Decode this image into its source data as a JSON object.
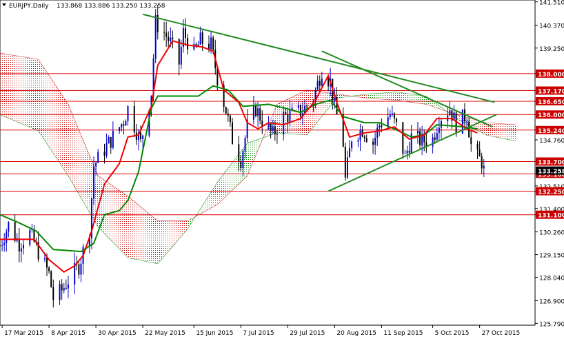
{
  "header": {
    "symbol": "EURJPY,Daily",
    "ohlc": "133.868 133.886 133.250 133.258"
  },
  "chart_data": {
    "type": "candlestick",
    "symbol": "EURJPY",
    "timeframe": "Daily",
    "last_ohlc": {
      "open": 133.868,
      "high": 133.886,
      "low": 133.25,
      "close": 133.258
    },
    "ylim": [
      125.7,
      141.6
    ],
    "y_ticks": [
      "141.510",
      "140.370",
      "139.250",
      "138.000",
      "137.170",
      "136.650",
      "136.000",
      "135.240",
      "134.760",
      "133.700",
      "133.100",
      "132.510",
      "132.250",
      "131.400",
      "131.100",
      "130.260",
      "129.150",
      "128.040",
      "126.900",
      "125.790"
    ],
    "x_ticks": [
      "17 Mar 2015",
      "8 Apr 2015",
      "30 Apr 2015",
      "22 May 2015",
      "15 Jun 2015",
      "7 Jul 2015",
      "29 Jul 2015",
      "20 Aug 2015",
      "11 Sep 2015",
      "5 Oct 2015",
      "27 Oct 2015"
    ],
    "horizontal_levels": [
      138.0,
      137.17,
      136.65,
      136.0,
      135.24,
      133.7,
      133.1,
      132.25,
      131.1
    ],
    "highlighted_levels": [
      "138.000",
      "137.170",
      "136.650",
      "136.000",
      "135.240",
      "133.700",
      "133.100",
      "132.250",
      "131.100"
    ],
    "current_price": "133.258",
    "trendlines": [
      {
        "from": [
          "22 May 2015",
          140.9
        ],
        "to": [
          "3 Nov 2015",
          136.6
        ]
      },
      {
        "from": [
          "14 Aug 2015",
          139.1
        ],
        "to": [
          "2 Nov 2015",
          135.4
        ]
      },
      {
        "from": [
          "17 Aug 2015",
          132.25
        ],
        "to": [
          "4 Nov 2015",
          136.0
        ]
      }
    ],
    "colors": {
      "tenkan": "#ee0000",
      "kijun": "#008800",
      "trendline": "#228B22",
      "level_line": "#dd0000",
      "cloud_bearish": "#cc0000",
      "cloud_bullish": "#008800",
      "bull_candle": "#0000cc",
      "bear_candle": "#000000",
      "level_tag": "#cc0000"
    },
    "series_path": [
      [
        "16 Mar 2015",
        129.6
      ],
      [
        "20 Mar 2015",
        130.6
      ],
      [
        "25 Mar 2015",
        129.7
      ],
      [
        "30 Mar 2015",
        130.2
      ],
      [
        "3 Apr 2015",
        129.3
      ],
      [
        "8 Apr 2015",
        128.2
      ],
      [
        "10 Apr 2015",
        127.0
      ],
      [
        "14 Apr 2015",
        127.4
      ],
      [
        "17 Apr 2015",
        127.9
      ],
      [
        "22 Apr 2015",
        128.6
      ],
      [
        "27 Apr 2015",
        130.4
      ],
      [
        "29 Apr 2015",
        133.5
      ],
      [
        "4 May 2015",
        134.3
      ],
      [
        "8 May 2015",
        134.9
      ],
      [
        "13 May 2015",
        135.7
      ],
      [
        "15 May 2015",
        136.3
      ],
      [
        "19 May 2015",
        135.2
      ],
      [
        "21 May 2015",
        134.6
      ],
      [
        "26 May 2015",
        137.1
      ],
      [
        "28 May 2015",
        140.5
      ],
      [
        "1 Jun 2015",
        140.0
      ],
      [
        "4 Jun 2015",
        139.5
      ],
      [
        "8 Jun 2015",
        138.5
      ],
      [
        "10 Jun 2015",
        140.0
      ],
      [
        "15 Jun 2015",
        139.0
      ],
      [
        "18 Jun 2015",
        139.6
      ],
      [
        "23 Jun 2015",
        139.4
      ],
      [
        "26 Jun 2015",
        137.8
      ],
      [
        "30 Jun 2015",
        136.2
      ],
      [
        "3 Jul 2015",
        134.8
      ],
      [
        "7 Jul 2015",
        133.8
      ],
      [
        "10 Jul 2015",
        135.4
      ],
      [
        "14 Jul 2015",
        136.3
      ],
      [
        "17 Jul 2015",
        135.7
      ],
      [
        "22 Jul 2015",
        135.0
      ],
      [
        "27 Jul 2015",
        135.9
      ],
      [
        "31 Jul 2015",
        136.0
      ],
      [
        "5 Aug 2015",
        136.2
      ],
      [
        "10 Aug 2015",
        136.8
      ],
      [
        "14 Aug 2015",
        138.2
      ],
      [
        "18 Aug 2015",
        137.6
      ],
      [
        "20 Aug 2015",
        136.4
      ],
      [
        "24 Aug 2015",
        134.6
      ],
      [
        "25 Aug 2015",
        132.8
      ],
      [
        "28 Aug 2015",
        134.9
      ],
      [
        "2 Sep 2015",
        135.3
      ],
      [
        "7 Sep 2015",
        134.6
      ],
      [
        "10 Sep 2015",
        135.5
      ],
      [
        "15 Sep 2015",
        136.0
      ],
      [
        "18 Sep 2015",
        135.4
      ],
      [
        "22 Sep 2015",
        133.9
      ],
      [
        "25 Sep 2015",
        134.9
      ],
      [
        "30 Sep 2015",
        134.7
      ],
      [
        "5 Oct 2015",
        134.8
      ],
      [
        "8 Oct 2015",
        135.8
      ],
      [
        "13 Oct 2015",
        136.3
      ],
      [
        "16 Oct 2015",
        135.5
      ],
      [
        "21 Oct 2015",
        136.0
      ],
      [
        "23 Oct 2015",
        134.5
      ],
      [
        "26 Oct 2015",
        133.9
      ],
      [
        "28 Oct 2015",
        133.7
      ],
      [
        "29 Oct 2015",
        133.26
      ]
    ],
    "tenkan_path": [
      [
        "16 Mar 2015",
        129.9
      ],
      [
        "1 Apr 2015",
        129.9
      ],
      [
        "8 Apr 2015",
        128.9
      ],
      [
        "15 Apr 2015",
        128.3
      ],
      [
        "20 Apr 2015",
        128.6
      ],
      [
        "24 Apr 2015",
        129.1
      ],
      [
        "28 Apr 2015",
        130.3
      ],
      [
        "4 May 2015",
        132.6
      ],
      [
        "11 May 2015",
        133.6
      ],
      [
        "15 May 2015",
        134.9
      ],
      [
        "20 May 2015",
        135.0
      ],
      [
        "26 May 2015",
        136.4
      ],
      [
        "29 May 2015",
        138.4
      ],
      [
        "5 Jun 2015",
        139.6
      ],
      [
        "12 Jun 2015",
        139.4
      ],
      [
        "19 Jun 2015",
        139.3
      ],
      [
        "24 Jun 2015",
        139.1
      ],
      [
        "29 Jun 2015",
        137.2
      ],
      [
        "6 Jul 2015",
        136.6
      ],
      [
        "10 Jul 2015",
        135.6
      ],
      [
        "15 Jul 2015",
        135.3
      ],
      [
        "20 Jul 2015",
        135.6
      ],
      [
        "27 Jul 2015",
        135.5
      ],
      [
        "4 Aug 2015",
        135.8
      ],
      [
        "11 Aug 2015",
        136.7
      ],
      [
        "17 Aug 2015",
        137.9
      ],
      [
        "21 Aug 2015",
        136.6
      ],
      [
        "27 Aug 2015",
        134.9
      ],
      [
        "3 Sep 2015",
        135.1
      ],
      [
        "10 Sep 2015",
        135.2
      ],
      [
        "17 Sep 2015",
        135.4
      ],
      [
        "24 Sep 2015",
        134.8
      ],
      [
        "1 Oct 2015",
        135.0
      ],
      [
        "7 Oct 2015",
        135.8
      ],
      [
        "14 Oct 2015",
        135.8
      ],
      [
        "21 Oct 2015",
        135.3
      ],
      [
        "26 Oct 2015",
        135.1
      ]
    ],
    "kijun_path": [
      [
        "16 Mar 2015",
        131.1
      ],
      [
        "25 Mar 2015",
        130.7
      ],
      [
        "2 Apr 2015",
        130.3
      ],
      [
        "10 Apr 2015",
        129.4
      ],
      [
        "23 Apr 2015",
        129.3
      ],
      [
        "29 Apr 2015",
        129.7
      ],
      [
        "4 May 2015",
        131.1
      ],
      [
        "11 May 2015",
        131.3
      ],
      [
        "15 May 2015",
        131.8
      ],
      [
        "20 May 2015",
        133.2
      ],
      [
        "26 May 2015",
        136.3
      ],
      [
        "29 May 2015",
        136.9
      ],
      [
        "17 Jun 2015",
        136.9
      ],
      [
        "24 Jun 2015",
        137.4
      ],
      [
        "1 Jul 2015",
        137.2
      ],
      [
        "8 Jul 2015",
        136.4
      ],
      [
        "20 Jul 2015",
        136.5
      ],
      [
        "28 Jul 2015",
        136.3
      ],
      [
        "4 Aug 2015",
        136.1
      ],
      [
        "11 Aug 2015",
        136.5
      ],
      [
        "18 Aug 2015",
        136.7
      ],
      [
        "24 Aug 2015",
        135.9
      ],
      [
        "3 Sep 2015",
        135.6
      ],
      [
        "10 Sep 2015",
        135.6
      ],
      [
        "17 Sep 2015",
        135.3
      ],
      [
        "25 Sep 2015",
        134.9
      ],
      [
        "1 Oct 2015",
        135.0
      ],
      [
        "7 Oct 2015",
        135.5
      ],
      [
        "19 Oct 2015",
        135.4
      ],
      [
        "26 Oct 2015",
        135.3
      ]
    ],
    "cloud_span_a": [
      [
        "16 Mar 2015",
        139.0
      ],
      [
        "3 Apr 2015",
        138.7
      ],
      [
        "17 Apr 2015",
        136.5
      ],
      [
        "1 May 2015",
        133.0
      ],
      [
        "15 May 2015",
        132.0
      ],
      [
        "29 May 2015",
        130.8
      ],
      [
        "12 Jun 2015",
        130.8
      ],
      [
        "26 Jun 2015",
        131.6
      ],
      [
        "10 Jul 2015",
        133.0
      ],
      [
        "24 Jul 2015",
        136.5
      ],
      [
        "7 Aug 2015",
        137.2
      ],
      [
        "21 Aug 2015",
        137.0
      ],
      [
        "4 Sep 2015",
        136.8
      ],
      [
        "18 Sep 2015",
        136.7
      ],
      [
        "2 Oct 2015",
        136.5
      ],
      [
        "16 Oct 2015",
        136.0
      ],
      [
        "30 Oct 2015",
        135.6
      ],
      [
        "13 Nov 2015",
        135.5
      ]
    ],
    "cloud_span_b": [
      [
        "16 Mar 2015",
        136.0
      ],
      [
        "3 Apr 2015",
        135.2
      ],
      [
        "17 Apr 2015",
        133.0
      ],
      [
        "1 May 2015",
        130.5
      ],
      [
        "15 May 2015",
        129.0
      ],
      [
        "29 May 2015",
        128.7
      ],
      [
        "12 Jun 2015",
        130.4
      ],
      [
        "26 Jun 2015",
        132.7
      ],
      [
        "10 Jul 2015",
        134.6
      ],
      [
        "24 Jul 2015",
        135.1
      ],
      [
        "7 Aug 2015",
        135.0
      ],
      [
        "21 Aug 2015",
        136.8
      ],
      [
        "4 Sep 2015",
        137.0
      ],
      [
        "18 Sep 2015",
        137.1
      ],
      [
        "2 Oct 2015",
        136.9
      ],
      [
        "16 Oct 2015",
        135.8
      ],
      [
        "30 Oct 2015",
        135.0
      ],
      [
        "13 Nov 2015",
        134.7
      ]
    ]
  }
}
